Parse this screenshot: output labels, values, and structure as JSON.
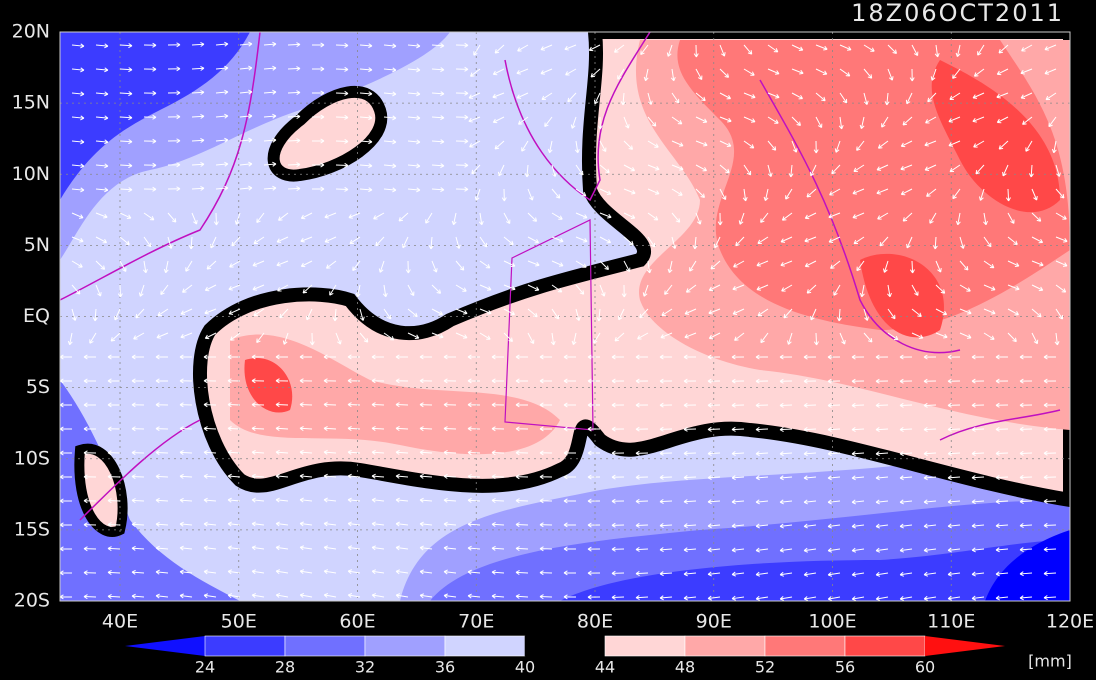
{
  "title": "18Z06OCT2011",
  "lat_labels": [
    "20N",
    "15N",
    "10N",
    "5N",
    "EQ",
    "5S",
    "10S",
    "15S",
    "20S"
  ],
  "lon_labels": [
    "40E",
    "50E",
    "60E",
    "70E",
    "80E",
    "90E",
    "100E",
    "110E",
    "120E"
  ],
  "colorbar": {
    "labels": [
      "24",
      "28",
      "32",
      "36",
      "40",
      "44",
      "48",
      "52",
      "56",
      "60"
    ],
    "unit": "[mm]"
  }
}
